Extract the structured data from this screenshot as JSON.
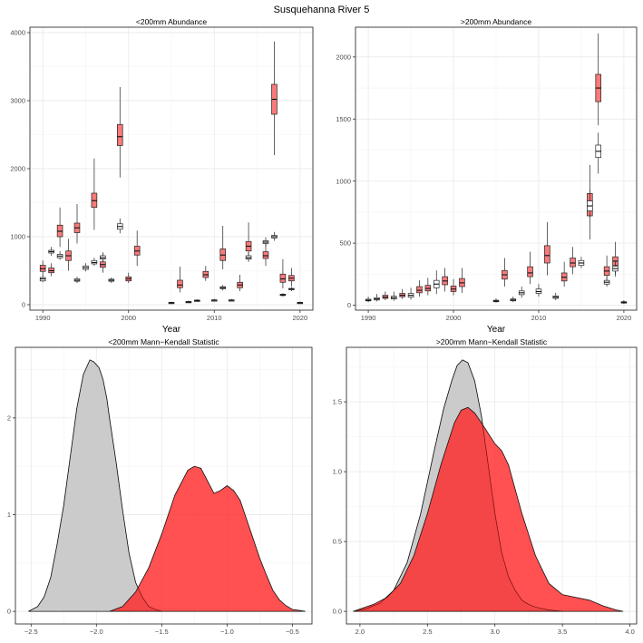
{
  "title": "Susquehanna River 5",
  "colors": {
    "grid": "#ebebeb",
    "red_fill": "#f87a7a",
    "gray_fill": "#ffffff",
    "density_gray": "#c8c8c8",
    "density_red": "#ff2020",
    "frame": "#333333"
  },
  "chart_data": [
    {
      "type": "box",
      "title": "<200mm Abundance",
      "xlabel": "Year",
      "ylabel": "",
      "xlim": [
        1988.5,
        2021.5
      ],
      "ylim": [
        -80,
        4080
      ],
      "xticks": [
        1990,
        2000,
        2010,
        2020
      ],
      "yticks": [
        0,
        1000,
        2000,
        3000,
        4000
      ],
      "grid": true,
      "series": [
        {
          "name": "red",
          "color": "#f87a7a",
          "boxes": [
            {
              "x": 1990,
              "min": 420,
              "q1": 490,
              "med": 530,
              "q3": 580,
              "max": 650
            },
            {
              "x": 1991,
              "min": 420,
              "q1": 470,
              "med": 500,
              "q3": 540,
              "max": 610
            },
            {
              "x": 1992,
              "min": 850,
              "q1": 1000,
              "med": 1080,
              "q3": 1170,
              "max": 1430
            },
            {
              "x": 1993,
              "min": 500,
              "q1": 650,
              "med": 720,
              "q3": 790,
              "max": 970
            },
            {
              "x": 1994,
              "min": 900,
              "q1": 1060,
              "med": 1130,
              "q3": 1200,
              "max": 1480
            },
            {
              "x": 1996,
              "min": 1100,
              "q1": 1430,
              "med": 1530,
              "q3": 1640,
              "max": 2150
            },
            {
              "x": 1997,
              "min": 470,
              "q1": 550,
              "med": 590,
              "q3": 630,
              "max": 750
            },
            {
              "x": 1999,
              "min": 1870,
              "q1": 2340,
              "med": 2470,
              "q3": 2650,
              "max": 3200
            },
            {
              "x": 2000,
              "min": 320,
              "q1": 350,
              "med": 380,
              "q3": 410,
              "max": 470
            },
            {
              "x": 2001,
              "min": 570,
              "q1": 730,
              "med": 790,
              "q3": 860,
              "max": 1090
            },
            {
              "x": 2006,
              "min": 180,
              "q1": 250,
              "med": 290,
              "q3": 360,
              "max": 560
            },
            {
              "x": 2009,
              "min": 350,
              "q1": 400,
              "med": 440,
              "q3": 490,
              "max": 570
            },
            {
              "x": 2011,
              "min": 520,
              "q1": 650,
              "med": 730,
              "q3": 820,
              "max": 1160
            },
            {
              "x": 2013,
              "min": 200,
              "q1": 250,
              "med": 290,
              "q3": 330,
              "max": 440
            },
            {
              "x": 2014,
              "min": 660,
              "q1": 790,
              "med": 860,
              "q3": 930,
              "max": 1210
            },
            {
              "x": 2016,
              "min": 570,
              "q1": 680,
              "med": 720,
              "q3": 780,
              "max": 910
            },
            {
              "x": 2017,
              "min": 2200,
              "q1": 2800,
              "med": 3020,
              "q3": 3240,
              "max": 3870
            },
            {
              "x": 2018,
              "min": 240,
              "q1": 330,
              "med": 380,
              "q3": 450,
              "max": 670
            },
            {
              "x": 2019,
              "min": 270,
              "q1": 350,
              "med": 390,
              "q3": 430,
              "max": 540
            }
          ]
        },
        {
          "name": "gray",
          "color": "#ffffff",
          "boxes": [
            {
              "x": 1990,
              "min": 330,
              "q1": 350,
              "med": 380,
              "q3": 400,
              "max": 430
            },
            {
              "x": 1991,
              "min": 720,
              "q1": 760,
              "med": 780,
              "q3": 800,
              "max": 850
            },
            {
              "x": 1992,
              "min": 660,
              "q1": 690,
              "med": 715,
              "q3": 740,
              "max": 790
            },
            {
              "x": 1994,
              "min": 320,
              "q1": 345,
              "med": 360,
              "q3": 380,
              "max": 410
            },
            {
              "x": 1995,
              "min": 490,
              "q1": 520,
              "med": 545,
              "q3": 570,
              "max": 610
            },
            {
              "x": 1996,
              "min": 570,
              "q1": 600,
              "med": 620,
              "q3": 650,
              "max": 690
            },
            {
              "x": 1997,
              "min": 630,
              "q1": 670,
              "med": 690,
              "q3": 720,
              "max": 770
            },
            {
              "x": 1998,
              "min": 320,
              "q1": 345,
              "med": 360,
              "q3": 375,
              "max": 400
            },
            {
              "x": 1999,
              "min": 1050,
              "q1": 1110,
              "med": 1150,
              "q3": 1190,
              "max": 1270
            },
            {
              "x": 2005,
              "min": 15,
              "q1": 22,
              "med": 28,
              "q3": 35,
              "max": 45
            },
            {
              "x": 2007,
              "min": 25,
              "q1": 33,
              "med": 40,
              "q3": 48,
              "max": 60
            },
            {
              "x": 2008,
              "min": 45,
              "q1": 55,
              "med": 60,
              "q3": 68,
              "max": 80
            },
            {
              "x": 2010,
              "min": 50,
              "q1": 60,
              "med": 65,
              "q3": 72,
              "max": 85
            },
            {
              "x": 2011,
              "min": 210,
              "q1": 235,
              "med": 250,
              "q3": 265,
              "max": 290
            },
            {
              "x": 2012,
              "min": 50,
              "q1": 60,
              "med": 65,
              "q3": 72,
              "max": 85
            },
            {
              "x": 2014,
              "min": 630,
              "q1": 670,
              "med": 690,
              "q3": 720,
              "max": 770
            },
            {
              "x": 2016,
              "min": 860,
              "q1": 900,
              "med": 920,
              "q3": 940,
              "max": 990
            },
            {
              "x": 2017,
              "min": 940,
              "q1": 980,
              "med": 1000,
              "q3": 1020,
              "max": 1070
            },
            {
              "x": 2018,
              "min": 120,
              "q1": 135,
              "med": 145,
              "q3": 155,
              "max": 170
            },
            {
              "x": 2019,
              "min": 200,
              "q1": 220,
              "med": 230,
              "q3": 240,
              "max": 260
            },
            {
              "x": 2020,
              "min": 15,
              "q1": 22,
              "med": 28,
              "q3": 35,
              "max": 45
            }
          ]
        }
      ]
    },
    {
      "type": "box",
      "title": ">200mm Abundance",
      "xlabel": "Year",
      "ylabel": "",
      "xlim": [
        1988.5,
        2021.5
      ],
      "ylim": [
        -40,
        2240
      ],
      "xticks": [
        1990,
        2000,
        2010,
        2020
      ],
      "yticks": [
        0,
        500,
        1000,
        1500,
        2000
      ],
      "grid": true,
      "series": [
        {
          "name": "red",
          "color": "#f87a7a",
          "boxes": [
            {
              "x": 1992,
              "min": 40,
              "q1": 55,
              "med": 65,
              "q3": 80,
              "max": 110
            },
            {
              "x": 1994,
              "min": 50,
              "q1": 68,
              "med": 80,
              "q3": 95,
              "max": 130
            },
            {
              "x": 1996,
              "min": 70,
              "q1": 100,
              "med": 120,
              "q3": 150,
              "max": 200
            },
            {
              "x": 1997,
              "min": 80,
              "q1": 115,
              "med": 135,
              "q3": 160,
              "max": 220
            },
            {
              "x": 1999,
              "min": 110,
              "q1": 165,
              "med": 195,
              "q3": 230,
              "max": 300
            },
            {
              "x": 2000,
              "min": 80,
              "q1": 110,
              "med": 130,
              "q3": 155,
              "max": 210
            },
            {
              "x": 2001,
              "min": 100,
              "q1": 150,
              "med": 180,
              "q3": 215,
              "max": 300
            },
            {
              "x": 2006,
              "min": 150,
              "q1": 210,
              "med": 245,
              "q3": 280,
              "max": 380
            },
            {
              "x": 2009,
              "min": 170,
              "q1": 230,
              "med": 260,
              "q3": 310,
              "max": 430
            },
            {
              "x": 2011,
              "min": 240,
              "q1": 340,
              "med": 400,
              "q3": 480,
              "max": 670
            },
            {
              "x": 2013,
              "min": 150,
              "q1": 195,
              "med": 225,
              "q3": 260,
              "max": 350
            },
            {
              "x": 2014,
              "min": 250,
              "q1": 310,
              "med": 340,
              "q3": 380,
              "max": 470
            },
            {
              "x": 2016,
              "min": 530,
              "q1": 720,
              "med": 800,
              "q3": 900,
              "max": 1130
            },
            {
              "x": 2017,
              "min": 1450,
              "q1": 1640,
              "med": 1750,
              "q3": 1860,
              "max": 2190
            },
            {
              "x": 2018,
              "min": 170,
              "q1": 240,
              "med": 275,
              "q3": 310,
              "max": 400
            },
            {
              "x": 2019,
              "min": 230,
              "q1": 320,
              "med": 355,
              "q3": 390,
              "max": 510
            }
          ]
        },
        {
          "name": "gray",
          "color": "#ffffff",
          "boxes": [
            {
              "x": 1990,
              "min": 25,
              "q1": 35,
              "med": 40,
              "q3": 48,
              "max": 70
            },
            {
              "x": 1991,
              "min": 30,
              "q1": 42,
              "med": 50,
              "q3": 60,
              "max": 90
            },
            {
              "x": 1993,
              "min": 35,
              "q1": 50,
              "med": 60,
              "q3": 72,
              "max": 110
            },
            {
              "x": 1995,
              "min": 45,
              "q1": 65,
              "med": 80,
              "q3": 95,
              "max": 140
            },
            {
              "x": 1998,
              "min": 90,
              "q1": 140,
              "med": 170,
              "q3": 200,
              "max": 280
            },
            {
              "x": 2005,
              "min": 20,
              "q1": 28,
              "med": 33,
              "q3": 40,
              "max": 55
            },
            {
              "x": 2007,
              "min": 25,
              "q1": 35,
              "med": 42,
              "q3": 50,
              "max": 70
            },
            {
              "x": 2008,
              "min": 60,
              "q1": 85,
              "med": 100,
              "q3": 115,
              "max": 150
            },
            {
              "x": 2010,
              "min": 70,
              "q1": 95,
              "med": 110,
              "q3": 130,
              "max": 170
            },
            {
              "x": 2012,
              "min": 40,
              "q1": 55,
              "med": 65,
              "q3": 75,
              "max": 100
            },
            {
              "x": 2015,
              "min": 300,
              "q1": 320,
              "med": 340,
              "q3": 360,
              "max": 390
            },
            {
              "x": 2016,
              "min": 700,
              "q1": 760,
              "med": 800,
              "q3": 840,
              "max": 930
            },
            {
              "x": 2017,
              "min": 1060,
              "q1": 1190,
              "med": 1240,
              "q3": 1290,
              "max": 1390
            },
            {
              "x": 2018,
              "min": 150,
              "q1": 170,
              "med": 185,
              "q3": 200,
              "max": 230
            },
            {
              "x": 2019,
              "min": 250,
              "q1": 275,
              "med": 295,
              "q3": 315,
              "max": 350
            },
            {
              "x": 2020,
              "min": 10,
              "q1": 18,
              "med": 22,
              "q3": 28,
              "max": 40
            }
          ]
        }
      ]
    },
    {
      "type": "area",
      "title": "<200mm Mann−Kendall Statistic",
      "xlabel": "",
      "ylabel": "",
      "xlim": [
        -2.62,
        -0.35
      ],
      "ylim": [
        -0.13,
        2.73
      ],
      "xticks": [
        -2.5,
        -2.0,
        -1.5,
        -1.0,
        -0.5
      ],
      "xtick_labels": [
        "−2.5",
        "−2.0",
        "−1.5",
        "−1.0",
        "−0.5"
      ],
      "yticks": [
        0,
        1,
        2
      ],
      "grid": true,
      "series": [
        {
          "name": "gray",
          "color": "#c8c8c8",
          "x": [
            -2.52,
            -2.45,
            -2.4,
            -2.35,
            -2.3,
            -2.25,
            -2.2,
            -2.15,
            -2.1,
            -2.05,
            -2.02,
            -2.0,
            -1.98,
            -1.95,
            -1.92,
            -1.9,
            -1.85,
            -1.8,
            -1.75,
            -1.7,
            -1.65,
            -1.6,
            -1.55,
            -1.5
          ],
          "y": [
            0.0,
            0.05,
            0.15,
            0.35,
            0.7,
            1.1,
            1.6,
            2.1,
            2.45,
            2.6,
            2.58,
            2.55,
            2.52,
            2.4,
            2.2,
            2.0,
            1.55,
            1.05,
            0.6,
            0.3,
            0.15,
            0.05,
            0.02,
            0.0
          ]
        },
        {
          "name": "red",
          "color": "#ff2020",
          "x": [
            -1.9,
            -1.8,
            -1.7,
            -1.6,
            -1.5,
            -1.4,
            -1.3,
            -1.25,
            -1.2,
            -1.15,
            -1.1,
            -1.05,
            -1.0,
            -0.95,
            -0.9,
            -0.85,
            -0.8,
            -0.75,
            -0.7,
            -0.65,
            -0.6,
            -0.55,
            -0.5,
            -0.45,
            -0.4
          ],
          "y": [
            0.0,
            0.05,
            0.2,
            0.45,
            0.8,
            1.2,
            1.46,
            1.5,
            1.48,
            1.35,
            1.22,
            1.25,
            1.3,
            1.25,
            1.15,
            0.95,
            0.75,
            0.55,
            0.38,
            0.22,
            0.12,
            0.06,
            0.02,
            0.01,
            0.0
          ]
        }
      ]
    },
    {
      "type": "area",
      "title": ">200mm Mann−Kendall Statistic",
      "xlabel": "",
      "ylabel": "",
      "xlim": [
        1.9,
        4.05
      ],
      "ylim": [
        -0.09,
        1.89
      ],
      "xticks": [
        2.0,
        2.5,
        3.0,
        3.5,
        4.0
      ],
      "xtick_labels": [
        "2.0",
        "2.5",
        "3.0",
        "3.5",
        "4.0"
      ],
      "yticks": [
        0.0,
        0.5,
        1.0,
        1.5
      ],
      "ytick_labels": [
        "0.0",
        "0.5",
        "1.0",
        "1.5"
      ],
      "grid": true,
      "series": [
        {
          "name": "gray",
          "color": "#c8c8c8",
          "x": [
            1.95,
            2.05,
            2.15,
            2.25,
            2.35,
            2.45,
            2.55,
            2.62,
            2.68,
            2.72,
            2.76,
            2.8,
            2.85,
            2.9,
            2.95,
            3.0,
            3.05,
            3.1,
            3.15,
            3.2,
            3.25,
            3.3,
            3.4,
            3.5
          ],
          "y": [
            0.0,
            0.02,
            0.06,
            0.15,
            0.35,
            0.7,
            1.15,
            1.45,
            1.65,
            1.76,
            1.8,
            1.78,
            1.65,
            1.4,
            1.05,
            0.7,
            0.42,
            0.25,
            0.15,
            0.08,
            0.05,
            0.03,
            0.01,
            0.0
          ]
        },
        {
          "name": "red",
          "color": "#ff2020",
          "x": [
            1.95,
            2.1,
            2.2,
            2.3,
            2.4,
            2.5,
            2.6,
            2.7,
            2.75,
            2.8,
            2.85,
            2.9,
            3.0,
            3.05,
            3.1,
            3.2,
            3.3,
            3.4,
            3.5,
            3.6,
            3.7,
            3.8,
            3.9,
            3.95
          ],
          "y": [
            0.0,
            0.05,
            0.1,
            0.2,
            0.4,
            0.7,
            1.05,
            1.35,
            1.44,
            1.46,
            1.42,
            1.35,
            1.2,
            1.15,
            1.05,
            0.7,
            0.4,
            0.2,
            0.12,
            0.1,
            0.08,
            0.04,
            0.01,
            0.0
          ]
        }
      ]
    }
  ]
}
